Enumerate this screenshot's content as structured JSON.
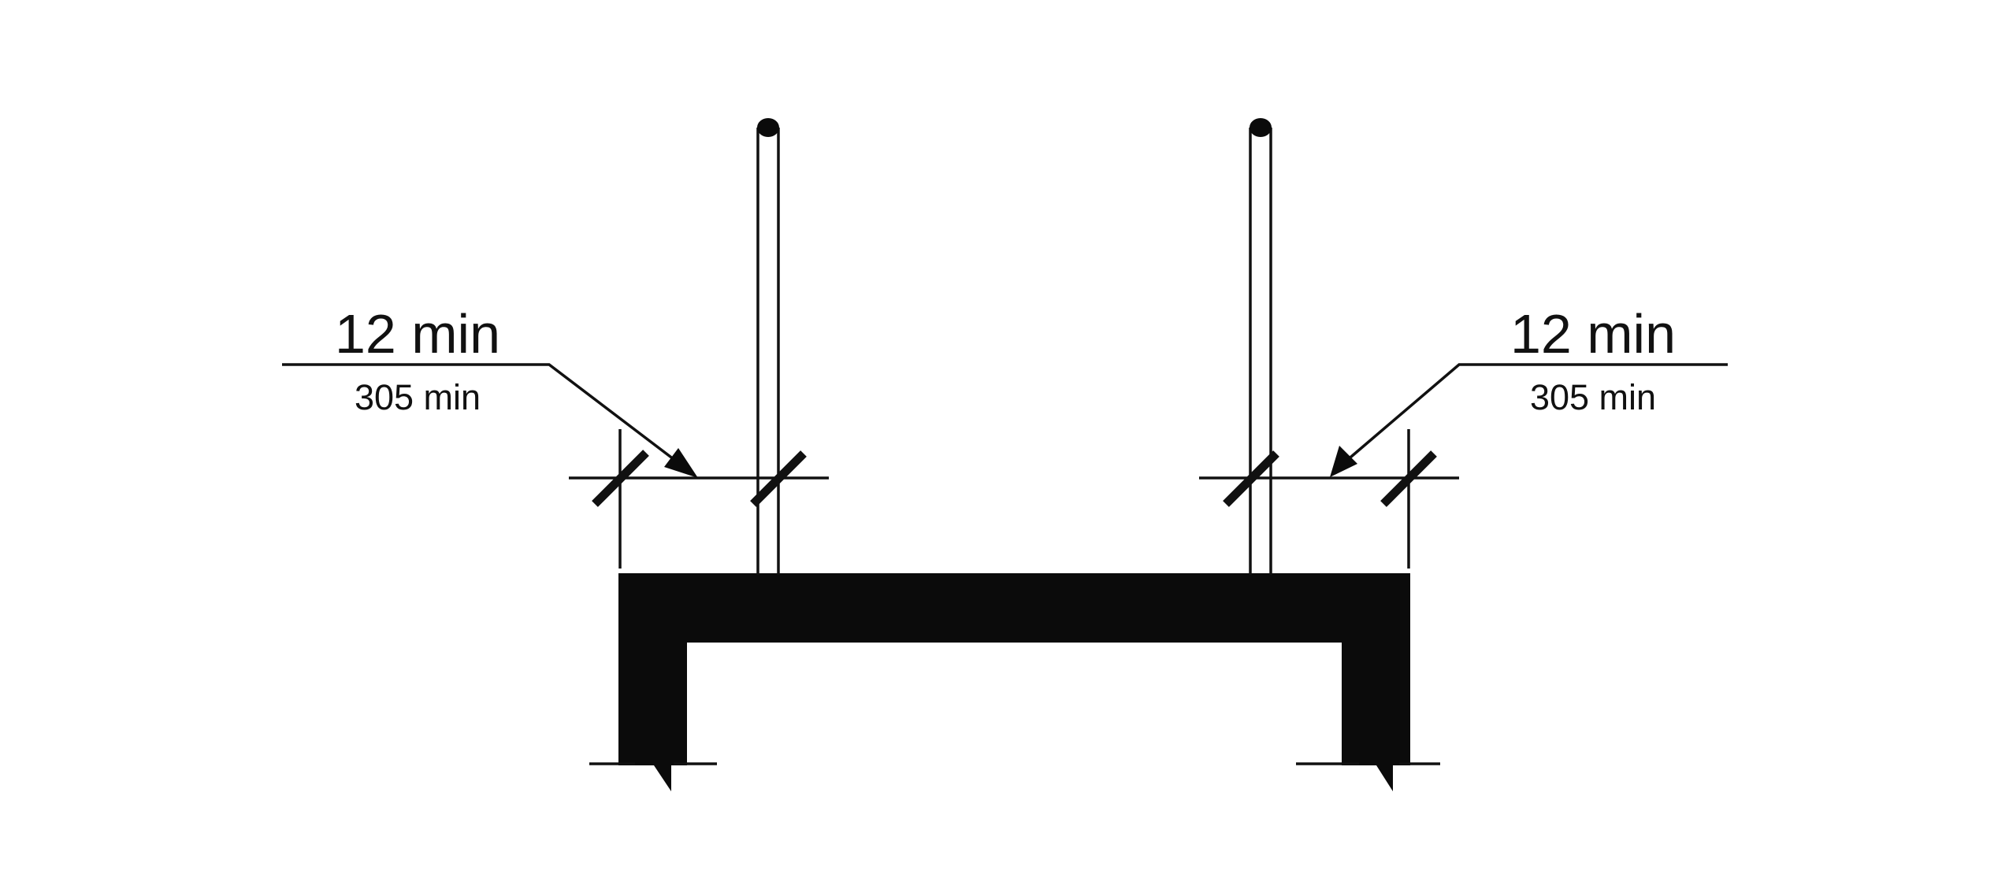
{
  "diagram": {
    "left_dimension": {
      "primary": "12 min",
      "secondary": "305 min"
    },
    "right_dimension": {
      "primary": "12 min",
      "secondary": "305 min"
    }
  },
  "colors": {
    "ink": "#111111",
    "background": "#ffffff"
  }
}
